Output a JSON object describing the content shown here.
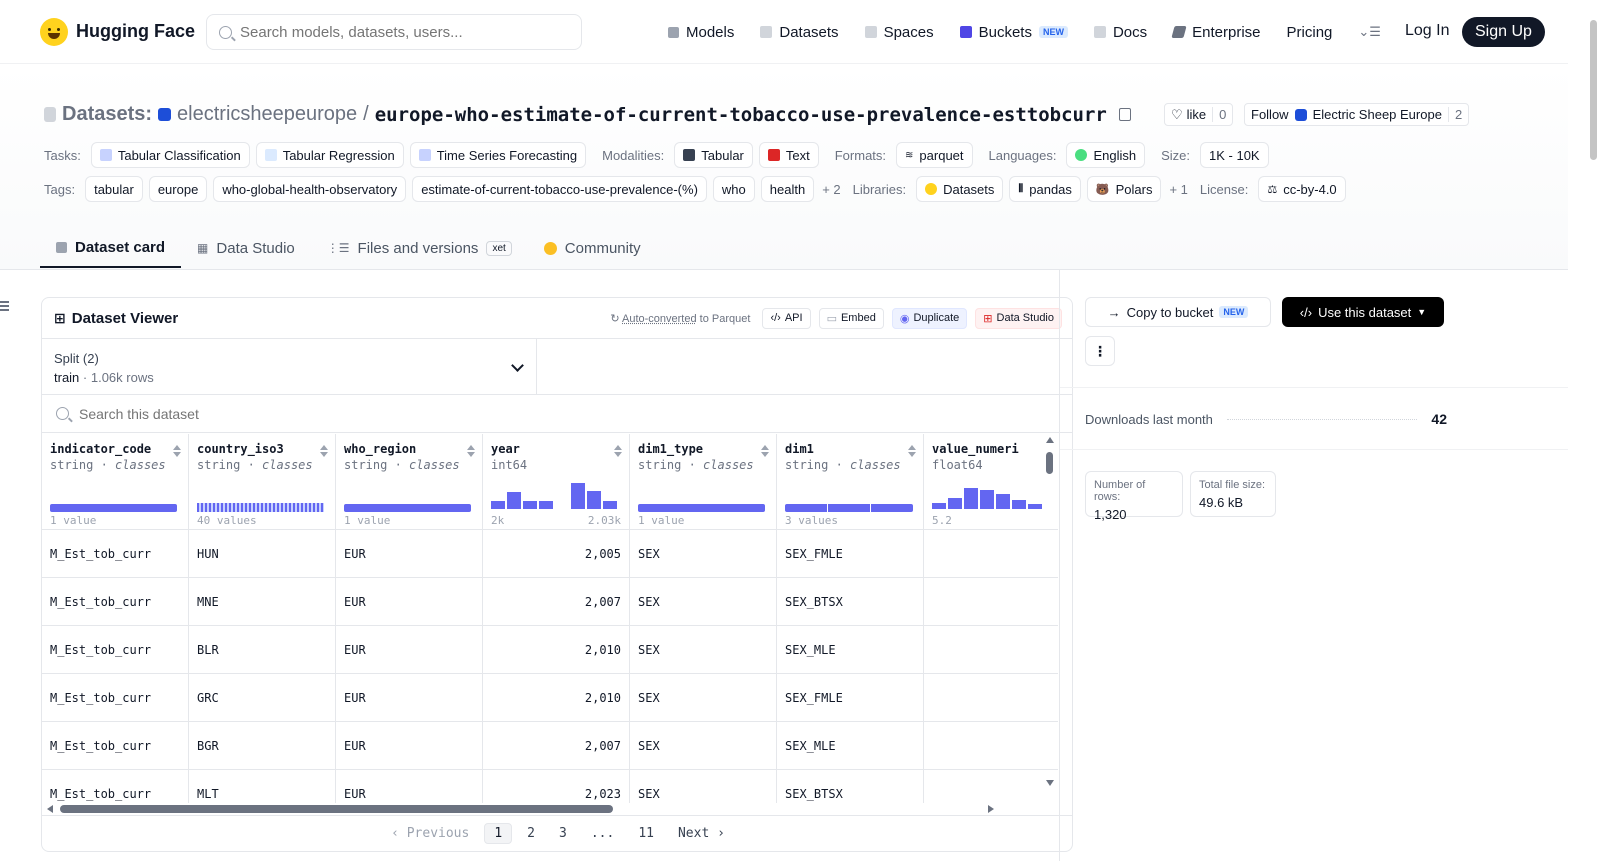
{
  "nav": {
    "brand": "Hugging Face",
    "search_placeholder": "Search models, datasets, users...",
    "links": [
      {
        "label": "Models",
        "icon": "cube-icon"
      },
      {
        "label": "Datasets",
        "icon": "database-icon"
      },
      {
        "label": "Spaces",
        "icon": "grid-icon"
      },
      {
        "label": "Buckets",
        "icon": "bucket-icon",
        "badge": "NEW"
      },
      {
        "label": "Docs",
        "icon": "book-icon"
      },
      {
        "label": "Enterprise",
        "icon": "enterprise-icon"
      },
      {
        "label": "Pricing"
      }
    ],
    "login": "Log In",
    "signup": "Sign Up"
  },
  "header": {
    "section": "Datasets:",
    "owner": "electricsheepeurope",
    "separator": "/",
    "name": "europe-who-estimate-of-current-tobacco-use-prevalence-esttobcurr",
    "like_label": "like",
    "like_count": "0",
    "follow_label": "Follow",
    "follow_org": "Electric Sheep Europe",
    "follow_count": "2"
  },
  "meta_row1": {
    "tasks_label": "Tasks:",
    "tasks": [
      "Tabular Classification",
      "Tabular Regression",
      "Time Series Forecasting"
    ],
    "modalities_label": "Modalities:",
    "modalities": [
      "Tabular",
      "Text"
    ],
    "formats_label": "Formats:",
    "formats": [
      "parquet"
    ],
    "languages_label": "Languages:",
    "languages": [
      "English"
    ],
    "size_label": "Size:",
    "size": "1K - 10K"
  },
  "meta_row2": {
    "tags_label": "Tags:",
    "tags": [
      "tabular",
      "europe",
      "who-global-health-observatory",
      "estimate-of-current-tobacco-use-prevalence-(%)",
      "who",
      "health"
    ],
    "tags_more": "+ 2",
    "libraries_label": "Libraries:",
    "libraries": [
      "Datasets",
      "pandas",
      "Polars"
    ],
    "libraries_more": "+ 1",
    "license_label": "License:",
    "license": "cc-by-4.0"
  },
  "tabs": [
    {
      "label": "Dataset card",
      "active": true
    },
    {
      "label": "Data Studio"
    },
    {
      "label": "Files and versions",
      "badge": "xet"
    },
    {
      "label": "Community"
    }
  ],
  "viewer": {
    "title": "Dataset Viewer",
    "auto_converted_link": "Auto-converted",
    "auto_converted_rest": " to Parquet",
    "buttons": [
      "API",
      "Embed",
      "Duplicate",
      "Data Studio"
    ],
    "split_label": "Split (2)",
    "split_value": "train",
    "split_rows": "1.06k rows",
    "search_placeholder": "Search this dataset",
    "columns": [
      {
        "name": "indicator_code",
        "type": "string",
        "kind": "classes",
        "foot_left": "1 value",
        "foot_right": ""
      },
      {
        "name": "country_iso3",
        "type": "string",
        "kind": "classes",
        "foot_left": "40 values",
        "foot_right": ""
      },
      {
        "name": "who_region",
        "type": "string",
        "kind": "classes",
        "foot_left": "1 value",
        "foot_right": ""
      },
      {
        "name": "year",
        "type": "int64",
        "kind": "",
        "foot_left": "2k",
        "foot_right": "2.03k"
      },
      {
        "name": "dim1_type",
        "type": "string",
        "kind": "classes",
        "foot_left": "1 value",
        "foot_right": ""
      },
      {
        "name": "dim1",
        "type": "string",
        "kind": "classes",
        "foot_left": "3 values",
        "foot_right": ""
      },
      {
        "name": "value_numeri",
        "type": "float64",
        "kind": "",
        "foot_left": "5.2",
        "foot_right": ""
      }
    ],
    "year_hist": [
      0.28,
      0.56,
      0.28,
      0.28,
      0,
      0.85,
      0.6,
      0.28
    ],
    "value_hist": [
      0.2,
      0.38,
      0.7,
      0.62,
      0.5,
      0.3,
      0.15
    ],
    "rows": [
      [
        "M_Est_tob_curr",
        "HUN",
        "EUR",
        "2,005",
        "SEX",
        "SEX_FMLE",
        ""
      ],
      [
        "M_Est_tob_curr",
        "MNE",
        "EUR",
        "2,007",
        "SEX",
        "SEX_BTSX",
        ""
      ],
      [
        "M_Est_tob_curr",
        "BLR",
        "EUR",
        "2,010",
        "SEX",
        "SEX_MLE",
        ""
      ],
      [
        "M_Est_tob_curr",
        "GRC",
        "EUR",
        "2,010",
        "SEX",
        "SEX_FMLE",
        ""
      ],
      [
        "M_Est_tob_curr",
        "BGR",
        "EUR",
        "2,007",
        "SEX",
        "SEX_MLE",
        ""
      ],
      [
        "M_Est_tob_curr",
        "MLT",
        "EUR",
        "2,023",
        "SEX",
        "SEX_BTSX",
        ""
      ]
    ],
    "pager": {
      "prev": "Previous",
      "pages": [
        "1",
        "2",
        "3",
        "...",
        "11"
      ],
      "next": "Next",
      "current": "1"
    }
  },
  "sidebar": {
    "copy_bucket": "Copy to bucket",
    "copy_bucket_badge": "NEW",
    "use_dataset": "Use this dataset",
    "downloads_label": "Downloads last month",
    "downloads_value": "42",
    "rows_label": "Number of rows:",
    "rows_value": "1,320",
    "filesize_label": "Total file size:",
    "filesize_value": "49.6 kB"
  }
}
